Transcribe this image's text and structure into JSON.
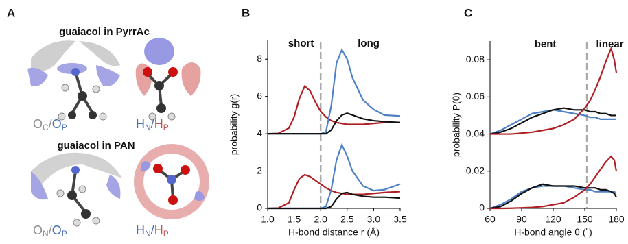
{
  "panel_a": {
    "label": "A",
    "groups": [
      {
        "title": "guaiacol in PyrrAc",
        "left_label": [
          {
            "main": "O",
            "sub": "C",
            "color": "#8c8c8c"
          },
          {
            "main": "/",
            "color": "#8c8c8c"
          },
          {
            "main": "O",
            "sub": "P",
            "color": "#4a6fb5"
          }
        ],
        "right_label": [
          {
            "main": "H",
            "sub": "N",
            "color": "#4a6fb5"
          },
          {
            "main": "/",
            "color": "#4a6fb5"
          },
          {
            "main": "H",
            "sub": "P",
            "color": "#c0504d"
          }
        ]
      },
      {
        "title": "guaiacol in PAN",
        "left_label": [
          {
            "main": "O",
            "sub": "N",
            "color": "#8c8c8c"
          },
          {
            "main": "/",
            "color": "#8c8c8c"
          },
          {
            "main": "O",
            "sub": "P",
            "color": "#4a6fb5"
          }
        ],
        "right_label": [
          {
            "main": "H",
            "sub": "N",
            "color": "#4a6fb5"
          },
          {
            "main": "/",
            "color": "#4a6fb5"
          },
          {
            "main": "H",
            "sub": "P",
            "color": "#c0504d"
          }
        ]
      }
    ]
  },
  "chart_data": [
    {
      "type": "line",
      "label": "B",
      "xlabel": "H-bond distance r (Å)",
      "ylabel": "probability g(r)",
      "annotations": [
        "short",
        "long"
      ],
      "divider": 2.0,
      "xlim": [
        1.0,
        3.5
      ],
      "xticks": [
        {
          "value": 1,
          "label": "1.0"
        },
        1.5,
        {
          "value": 2,
          "label": "2.0"
        },
        2.5,
        {
          "value": 3,
          "label": "3.0"
        },
        3.5
      ],
      "ylim": [
        0,
        9
      ],
      "yticks": [
        0,
        2,
        4,
        6,
        8
      ],
      "x": [
        1.0,
        1.2,
        1.4,
        1.5,
        1.6,
        1.7,
        1.8,
        1.9,
        2.0,
        2.1,
        2.2,
        2.3,
        2.4,
        2.5,
        2.6,
        2.8,
        3.0,
        3.2,
        3.5
      ],
      "series": [
        {
          "color": "#b01f24",
          "values": [
            4.0,
            4.02,
            4.3,
            4.9,
            5.9,
            6.55,
            6.3,
            5.7,
            5.2,
            4.9,
            4.7,
            4.6,
            4.55,
            4.5,
            4.5,
            4.5,
            4.55,
            4.6,
            4.6
          ]
        },
        {
          "color": "#4f81c4",
          "values": [
            4.0,
            4.0,
            4.0,
            4.0,
            4.0,
            4.0,
            4.0,
            4.0,
            4.0,
            4.1,
            5.5,
            7.8,
            8.5,
            8.0,
            7.0,
            5.8,
            5.3,
            5.0,
            4.95
          ]
        },
        {
          "color": "#111111",
          "values": [
            4.0,
            4.0,
            4.0,
            4.0,
            4.0,
            4.0,
            4.0,
            4.0,
            4.0,
            4.0,
            4.2,
            4.7,
            5.0,
            5.1,
            5.0,
            4.8,
            4.7,
            4.65,
            4.6
          ]
        },
        {
          "color": "#b01f24",
          "values": [
            0,
            0.02,
            0.3,
            1.0,
            1.6,
            1.8,
            1.7,
            1.5,
            1.3,
            1.1,
            0.95,
            0.85,
            0.8,
            0.75,
            0.75,
            0.75,
            0.8,
            0.85,
            0.9
          ]
        },
        {
          "color": "#4f81c4",
          "values": [
            0,
            0,
            0,
            0,
            0,
            0,
            0,
            0,
            0,
            0.1,
            1.0,
            2.6,
            3.4,
            2.8,
            2.0,
            1.2,
            0.95,
            1.0,
            1.3
          ]
        },
        {
          "color": "#111111",
          "values": [
            0,
            0,
            0,
            0,
            0,
            0,
            0,
            0,
            0,
            0,
            0.1,
            0.5,
            0.8,
            0.85,
            0.75,
            0.65,
            0.6,
            0.6,
            0.55
          ]
        }
      ]
    },
    {
      "type": "line",
      "label": "C",
      "xlabel": "H-bond angle θ (˚)",
      "ylabel": "probability P(θ)",
      "annotations": [
        "bent",
        "linear"
      ],
      "divider": 152,
      "xlim": [
        60,
        180
      ],
      "xticks": [
        60,
        90,
        120,
        150,
        180
      ],
      "ylim": [
        0,
        0.09
      ],
      "yticks": [
        0,
        0.02,
        0.04,
        0.06,
        0.08
      ],
      "x": [
        60,
        70,
        80,
        90,
        100,
        110,
        120,
        130,
        140,
        150,
        155,
        160,
        165,
        170,
        175,
        178,
        180
      ],
      "series": [
        {
          "color": "#4f81c4",
          "values": [
            0.04,
            0.042,
            0.045,
            0.048,
            0.051,
            0.052,
            0.053,
            0.052,
            0.051,
            0.05,
            0.049,
            0.049,
            0.048,
            0.048,
            0.048,
            0.048,
            0.048
          ]
        },
        {
          "color": "#111111",
          "values": [
            0.04,
            0.041,
            0.043,
            0.046,
            0.049,
            0.051,
            0.053,
            0.054,
            0.053,
            0.053,
            0.052,
            0.052,
            0.051,
            0.051,
            0.05,
            0.05,
            0.05
          ]
        },
        {
          "color": "#b01f24",
          "values": [
            0.04,
            0.04,
            0.04,
            0.0405,
            0.041,
            0.042,
            0.043,
            0.045,
            0.048,
            0.054,
            0.058,
            0.064,
            0.071,
            0.079,
            0.086,
            0.08,
            0.073
          ]
        },
        {
          "color": "#4f81c4",
          "values": [
            0,
            0.002,
            0.005,
            0.009,
            0.011,
            0.012,
            0.012,
            0.012,
            0.011,
            0.01,
            0.01,
            0.009,
            0.009,
            0.009,
            0.009,
            0.009,
            0.008
          ]
        },
        {
          "color": "#111111",
          "values": [
            0,
            0.001,
            0.004,
            0.008,
            0.011,
            0.013,
            0.012,
            0.012,
            0.012,
            0.011,
            0.011,
            0.011,
            0.01,
            0.01,
            0.009,
            0.008,
            0.006
          ]
        },
        {
          "color": "#b01f24",
          "values": [
            0,
            0,
            0.0001,
            0.0003,
            0.0005,
            0.001,
            0.002,
            0.003,
            0.006,
            0.01,
            0.013,
            0.017,
            0.021,
            0.025,
            0.028,
            0.026,
            0.02
          ]
        }
      ]
    }
  ]
}
